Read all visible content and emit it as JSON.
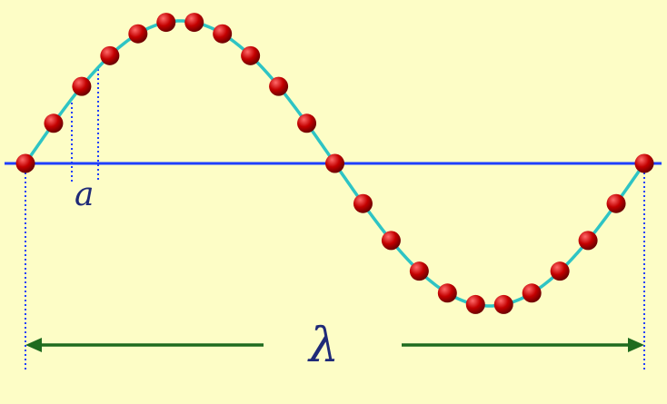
{
  "labels": {
    "lattice_constant": "a",
    "wavelength": "λ"
  },
  "colors": {
    "background": "#fdfdc6",
    "axis": "#1f3fff",
    "wave": "#2ec4c4",
    "atom_highlight": "#ff5a5a",
    "atom_base": "#b40000",
    "atom_shadow": "#6e0000",
    "guide": "#1f3fff",
    "arrow": "#1f6b1f",
    "label": "#1f2a78"
  },
  "wave": {
    "wavelength_count": 1,
    "atoms_per_wavelength": 22
  }
}
